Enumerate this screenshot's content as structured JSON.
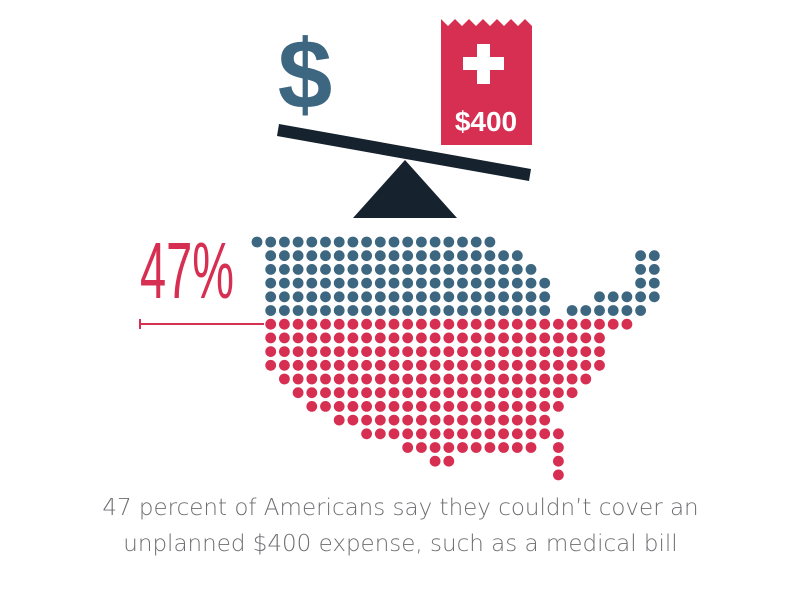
{
  "infographic": {
    "dollar_symbol": "$",
    "receipt_amount": "$400",
    "percent_label": "47%",
    "caption_line1": "47 percent of Americans say they couldn’t cover an",
    "caption_line2": "unplanned $400 expense, such as a medical bill",
    "statistic": {
      "share_cannot_cover": 0.47
    }
  },
  "colors": {
    "blue": "#3d6680",
    "red": "#d62f52",
    "navy": "#16222e",
    "caption": "#6d6e71",
    "white": "#ffffff"
  },
  "icons": [
    "dollar-icon",
    "medical-receipt-icon",
    "medical-cross-icon",
    "balance-scale-icon"
  ]
}
